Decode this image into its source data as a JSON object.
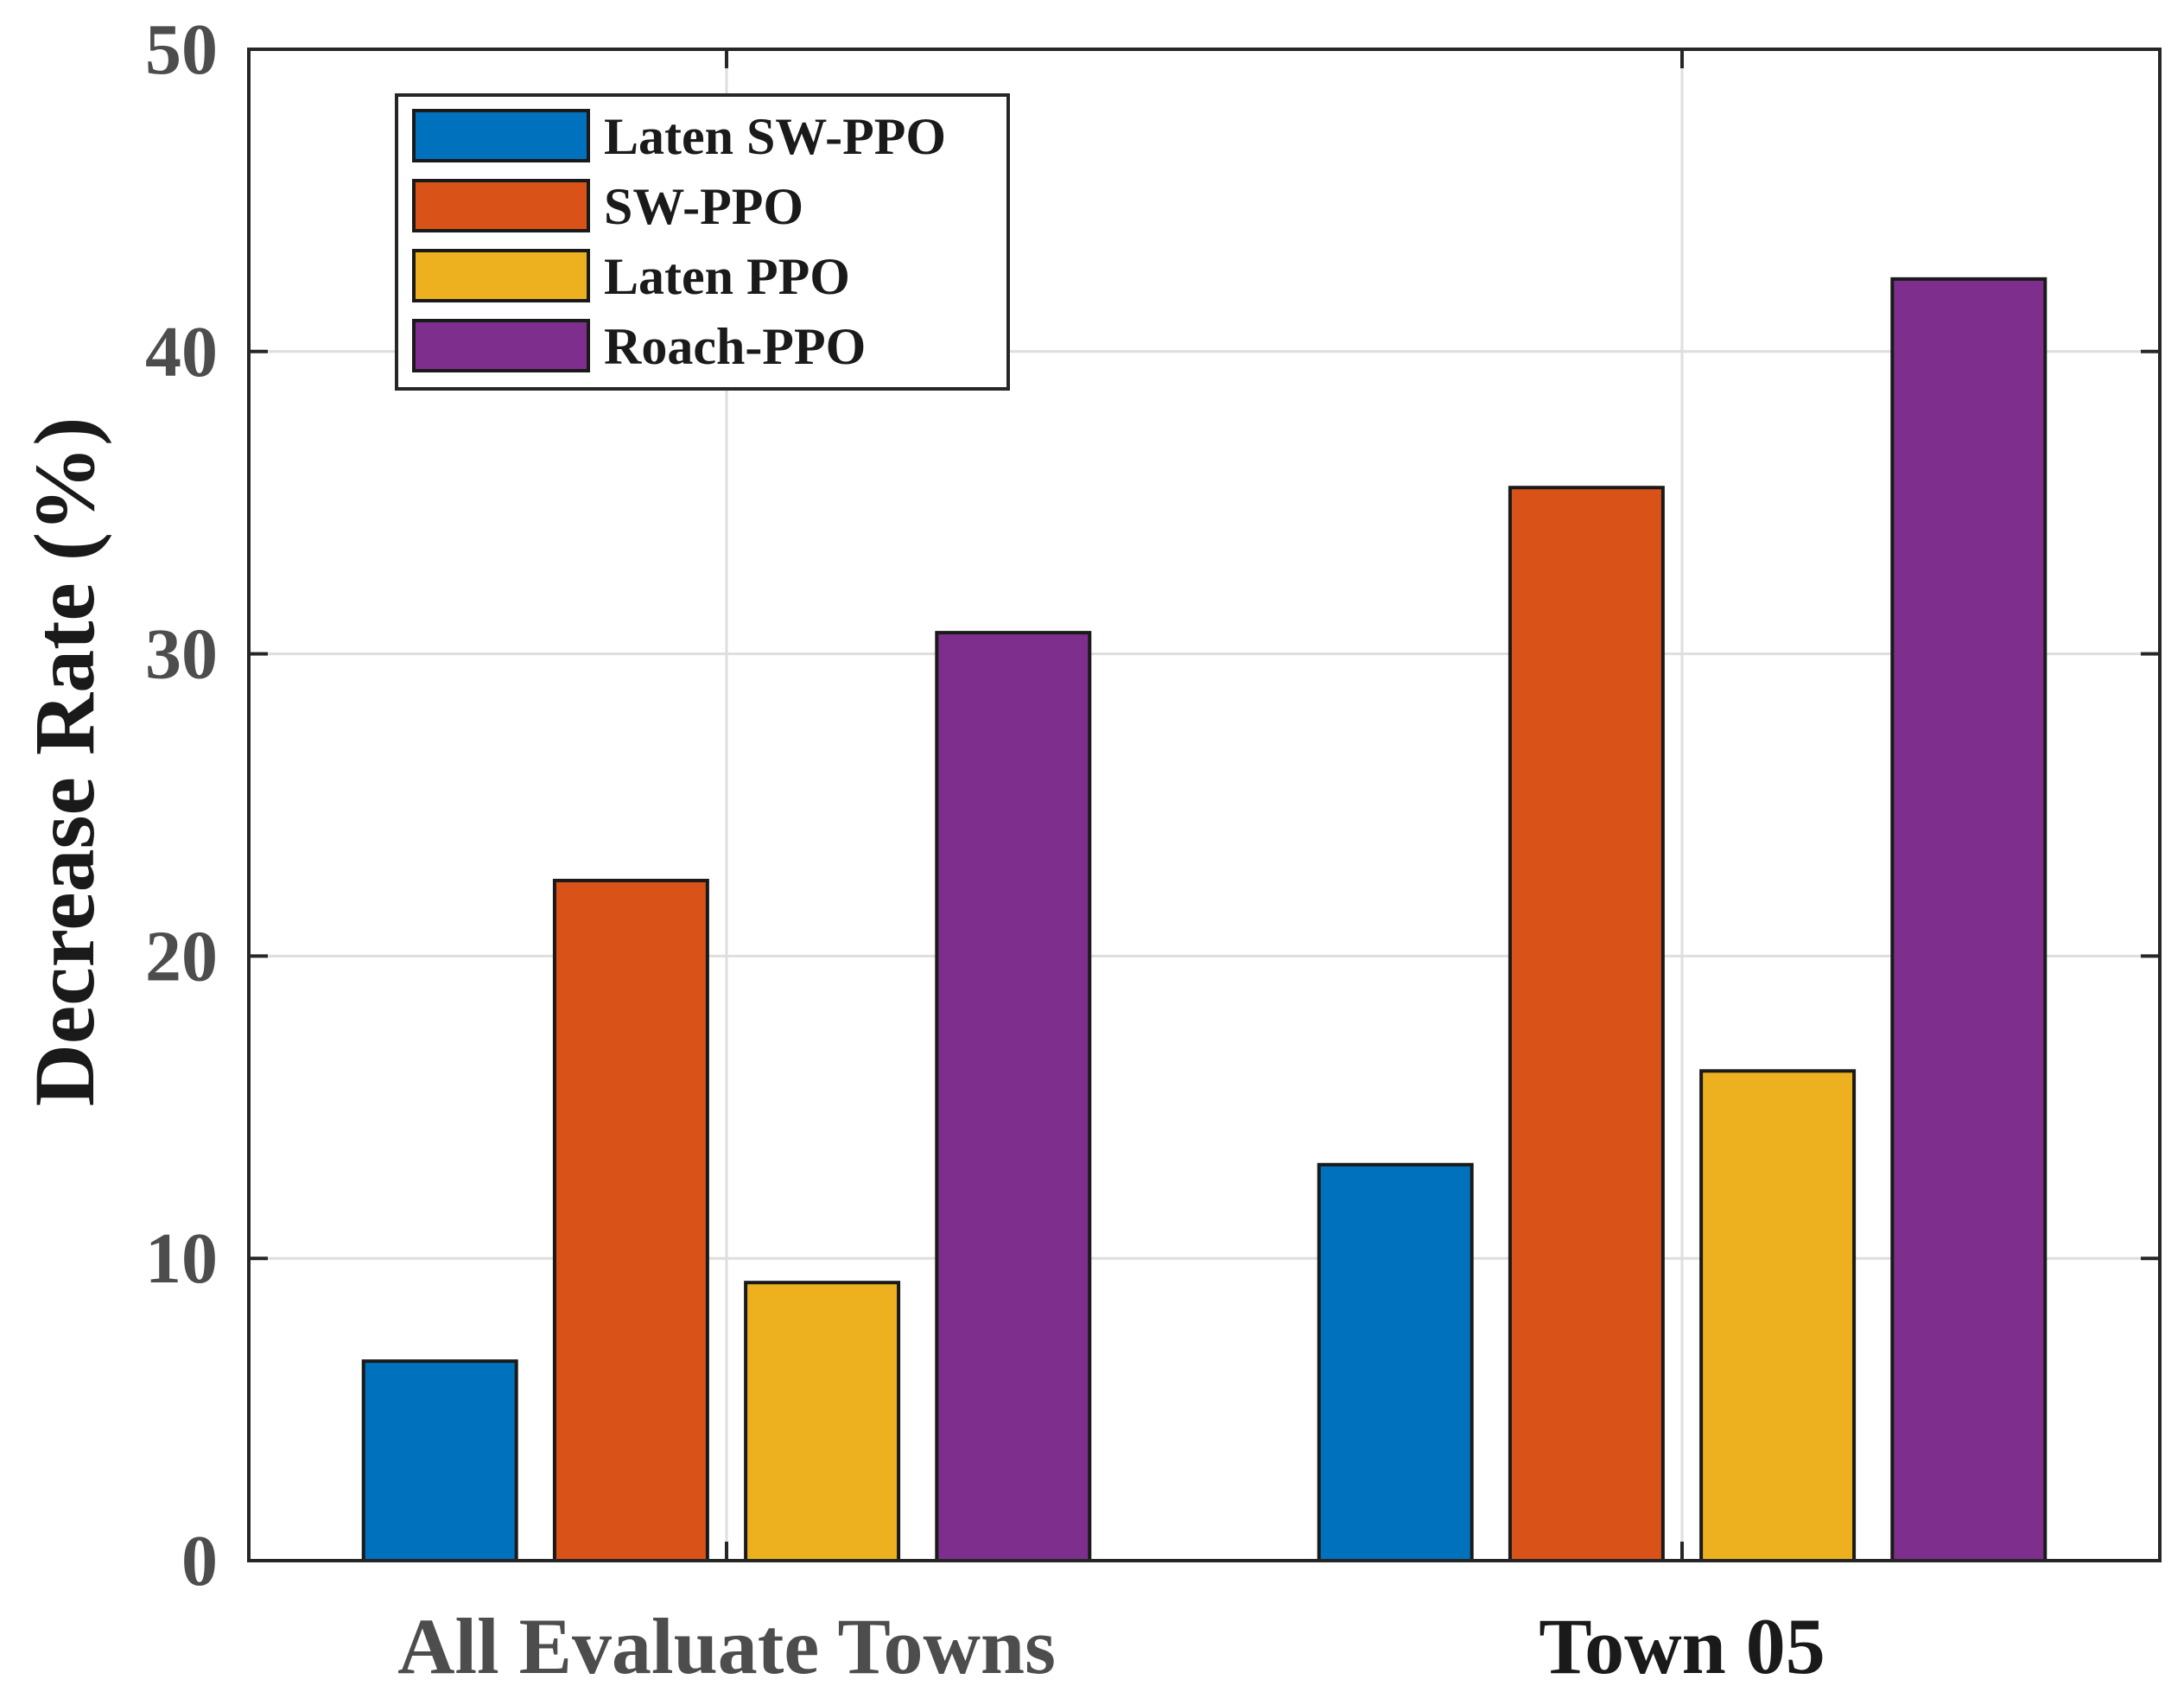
{
  "chart_data": {
    "type": "bar",
    "title": "",
    "xlabel": "",
    "ylabel": "Decrease Rate (%)",
    "ylim": [
      0,
      50
    ],
    "yticks": [
      "0",
      "10",
      "20",
      "30",
      "40",
      "50"
    ],
    "grid": true,
    "legend_position": "top-left",
    "categories": [
      "All Evaluate Towns",
      "Town 05"
    ],
    "category_colors": [
      "#4d4d4d",
      "#1a1a1a"
    ],
    "series": [
      {
        "name": "Laten SW-PPO",
        "color": "#0072BD",
        "values": [
          6.6,
          13.1
        ]
      },
      {
        "name": "SW-PPO",
        "color": "#D95319",
        "values": [
          22.5,
          35.5
        ]
      },
      {
        "name": "Laten PPO",
        "color": "#EDB120",
        "values": [
          9.2,
          16.2
        ]
      },
      {
        "name": "Roach-PPO",
        "color": "#7E2F8E",
        "values": [
          30.7,
          42.4
        ]
      }
    ]
  }
}
